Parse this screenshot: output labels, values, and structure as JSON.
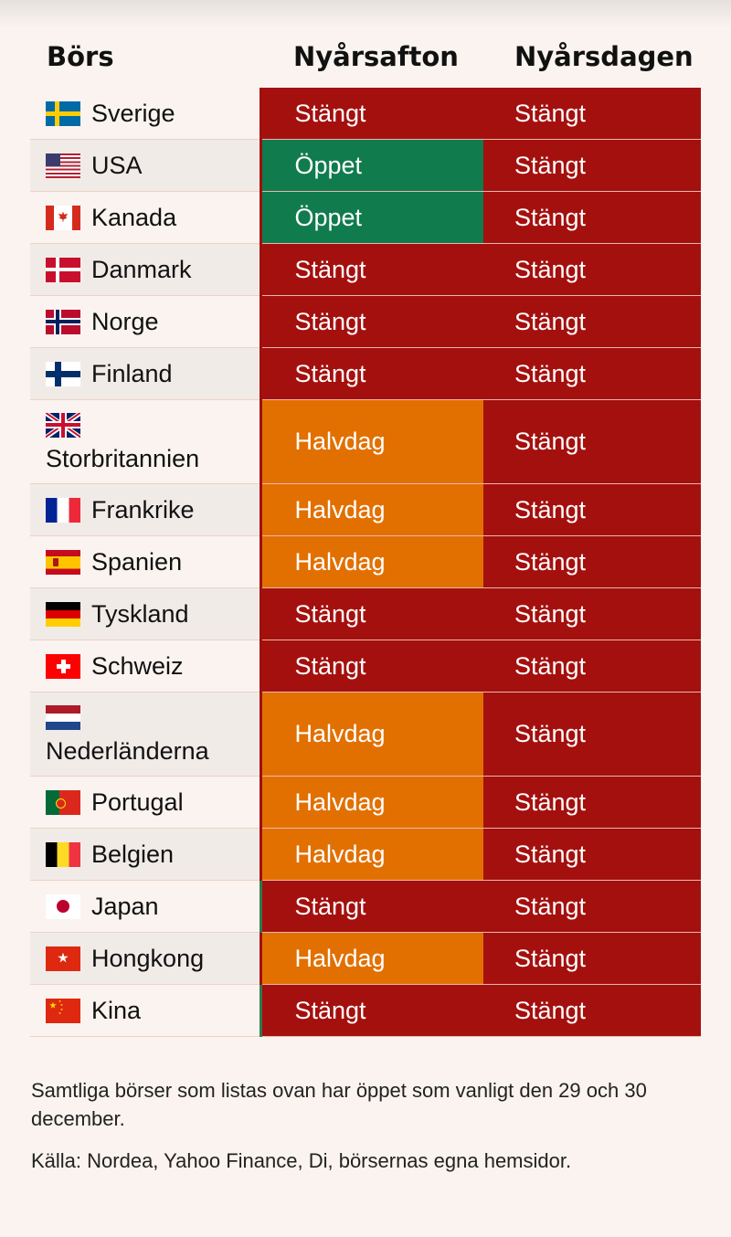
{
  "chart_data": {
    "type": "table",
    "columns": [
      "Börs",
      "Nyårsafton",
      "Nyårsdagen"
    ],
    "rows": [
      {
        "country": "Sverige",
        "flag": "sweden-flag-icon",
        "nyarsafton": "Stängt",
        "nyarsdagen": "Stängt"
      },
      {
        "country": "USA",
        "flag": "usa-flag-icon",
        "nyarsafton": "Öppet",
        "nyarsdagen": "Stängt"
      },
      {
        "country": "Kanada",
        "flag": "canada-flag-icon",
        "nyarsafton": "Öppet",
        "nyarsdagen": "Stängt"
      },
      {
        "country": "Danmark",
        "flag": "denmark-flag-icon",
        "nyarsafton": "Stängt",
        "nyarsdagen": "Stängt"
      },
      {
        "country": "Norge",
        "flag": "norway-flag-icon",
        "nyarsafton": "Stängt",
        "nyarsdagen": "Stängt"
      },
      {
        "country": "Finland",
        "flag": "finland-flag-icon",
        "nyarsafton": "Stängt",
        "nyarsdagen": "Stängt"
      },
      {
        "country": "Storbritannien",
        "flag": "uk-flag-icon",
        "nyarsafton": "Halvdag",
        "nyarsdagen": "Stängt"
      },
      {
        "country": "Frankrike",
        "flag": "france-flag-icon",
        "nyarsafton": "Halvdag",
        "nyarsdagen": "Stängt"
      },
      {
        "country": "Spanien",
        "flag": "spain-flag-icon",
        "nyarsafton": "Halvdag",
        "nyarsdagen": "Stängt"
      },
      {
        "country": "Tyskland",
        "flag": "germany-flag-icon",
        "nyarsafton": "Stängt",
        "nyarsdagen": "Stängt"
      },
      {
        "country": "Schweiz",
        "flag": "switzerland-flag-icon",
        "nyarsafton": "Stängt",
        "nyarsdagen": "Stängt"
      },
      {
        "country": "Nederländerna",
        "flag": "netherlands-flag-icon",
        "nyarsafton": "Halvdag",
        "nyarsdagen": "Stängt"
      },
      {
        "country": "Portugal",
        "flag": "portugal-flag-icon",
        "nyarsafton": "Halvdag",
        "nyarsdagen": "Stängt"
      },
      {
        "country": "Belgien",
        "flag": "belgium-flag-icon",
        "nyarsafton": "Halvdag",
        "nyarsdagen": "Stängt"
      },
      {
        "country": "Japan",
        "flag": "japan-flag-icon",
        "nyarsafton": "Stängt",
        "nyarsdagen": "Stängt"
      },
      {
        "country": "Hongkong",
        "flag": "hongkong-flag-icon",
        "nyarsafton": "Halvdag",
        "nyarsdagen": "Stängt"
      },
      {
        "country": "Kina",
        "flag": "china-flag-icon",
        "nyarsafton": "Stängt",
        "nyarsdagen": "Stängt"
      }
    ]
  },
  "status_colors": {
    "Stängt": "#a4100e",
    "Öppet": "#107b4c",
    "Halvdag": "#e27000"
  },
  "notes": {
    "line1": "Samtliga börser som listas ovan har öppet som vanligt den 29 och 30 december.",
    "source": "Källa: Nordea, Yahoo Finance, Di, börsernas egna hemsidor."
  }
}
